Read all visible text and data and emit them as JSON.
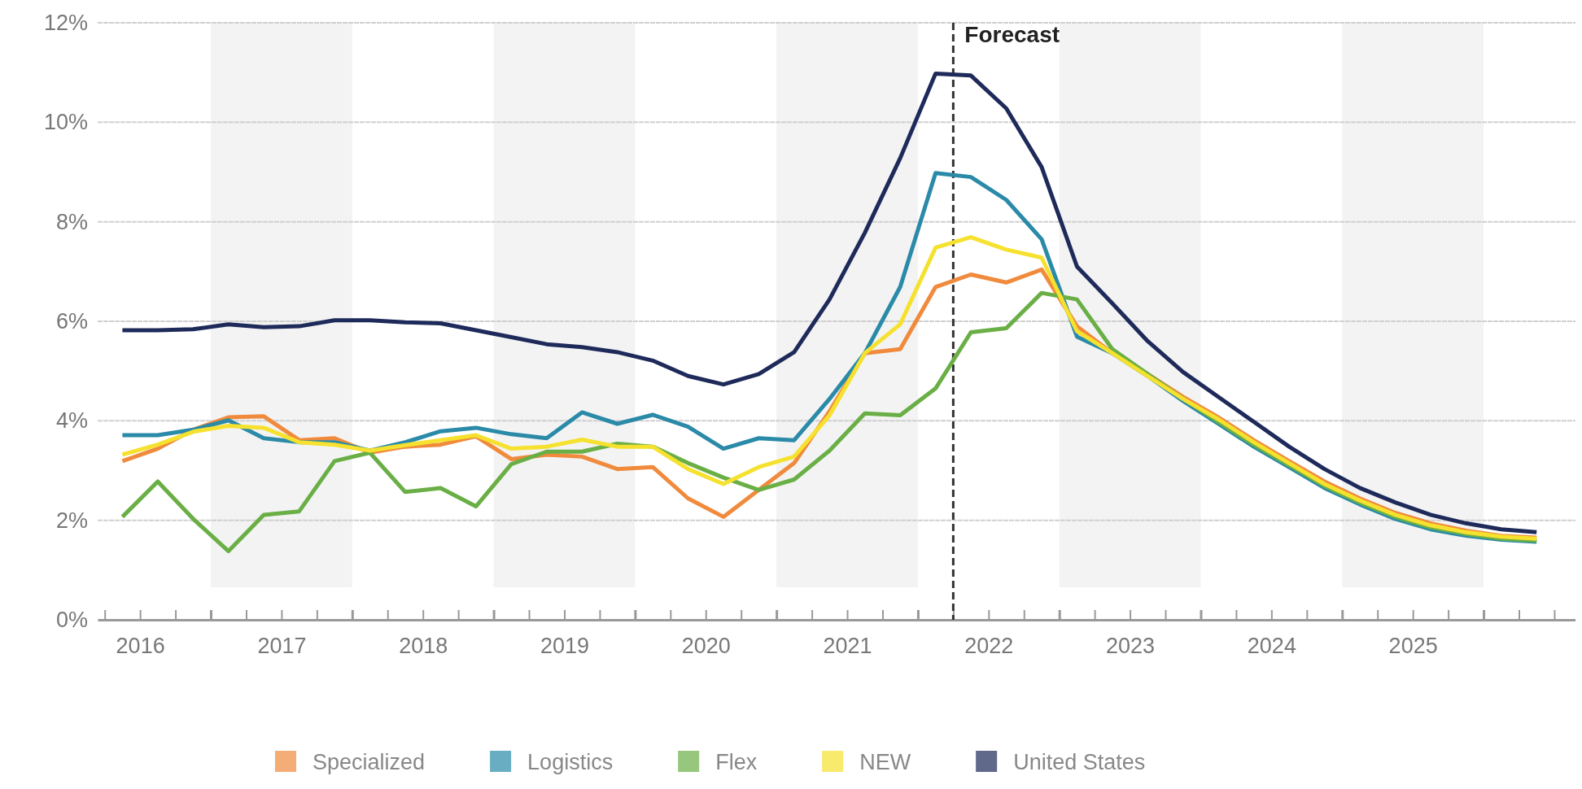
{
  "chart_data": {
    "type": "line",
    "x": [
      2016.375,
      2016.625,
      2016.875,
      2017.125,
      2017.375,
      2017.625,
      2017.875,
      2018.125,
      2018.375,
      2018.625,
      2018.875,
      2019.125,
      2019.375,
      2019.625,
      2019.875,
      2020.125,
      2020.375,
      2020.625,
      2020.875,
      2021.125,
      2021.375,
      2021.625,
      2021.875,
      2022.125,
      2022.375,
      2022.625,
      2022.875,
      2023.125,
      2023.375,
      2023.625,
      2023.875,
      2024.125,
      2024.375,
      2024.625,
      2024.875,
      2025.125,
      2025.375,
      2025.625,
      2025.875,
      2026.125,
      2026.375
    ],
    "series": [
      {
        "name": "Specialized",
        "color": "#f08a3c",
        "values": [
          3.19,
          3.44,
          3.82,
          4.07,
          4.09,
          3.61,
          3.65,
          3.36,
          3.48,
          3.52,
          3.69,
          3.23,
          3.32,
          3.28,
          3.03,
          3.07,
          2.44,
          2.07,
          2.61,
          3.15,
          4.19,
          5.36,
          5.44,
          6.69,
          6.94,
          6.78,
          7.04,
          5.9,
          5.36,
          4.94,
          4.48,
          4.07,
          3.61,
          3.19,
          2.78,
          2.44,
          2.15,
          1.94,
          1.79,
          1.69,
          1.65
        ]
      },
      {
        "name": "Logistics",
        "color": "#2a8aa8",
        "values": [
          3.71,
          3.71,
          3.82,
          4.01,
          3.65,
          3.57,
          3.57,
          3.4,
          3.57,
          3.79,
          3.86,
          3.73,
          3.65,
          4.17,
          3.94,
          4.12,
          3.88,
          3.44,
          3.65,
          3.61,
          4.44,
          5.36,
          6.69,
          8.98,
          8.9,
          8.44,
          7.65,
          5.69,
          5.36,
          4.9,
          4.4,
          3.94,
          3.48,
          3.07,
          2.65,
          2.32,
          2.03,
          1.82,
          1.69,
          1.61,
          1.57
        ]
      },
      {
        "name": "Flex",
        "color": "#6aaf46",
        "values": [
          2.07,
          2.78,
          2.03,
          1.38,
          2.11,
          2.18,
          3.19,
          3.36,
          2.57,
          2.65,
          2.28,
          3.13,
          3.38,
          3.38,
          3.54,
          3.48,
          3.15,
          2.86,
          2.61,
          2.82,
          3.4,
          4.15,
          4.11,
          4.65,
          5.78,
          5.86,
          6.57,
          6.44,
          5.44,
          4.94,
          4.44,
          3.98,
          3.52,
          3.11,
          2.69,
          2.36,
          2.07,
          1.86,
          1.73,
          1.63,
          1.59
        ]
      },
      {
        "name": "NEW",
        "color": "#f5e12e",
        "values": [
          3.32,
          3.52,
          3.78,
          3.9,
          3.86,
          3.57,
          3.52,
          3.4,
          3.51,
          3.61,
          3.71,
          3.44,
          3.48,
          3.62,
          3.48,
          3.48,
          3.03,
          2.73,
          3.07,
          3.28,
          4.11,
          5.36,
          5.94,
          7.48,
          7.69,
          7.44,
          7.28,
          5.8,
          5.36,
          4.9,
          4.44,
          4.03,
          3.57,
          3.15,
          2.73,
          2.4,
          2.11,
          1.9,
          1.76,
          1.67,
          1.63
        ]
      },
      {
        "name": "United States",
        "color": "#1e2a5a",
        "values": [
          5.82,
          5.82,
          5.84,
          5.94,
          5.88,
          5.9,
          6.02,
          6.02,
          5.98,
          5.96,
          5.82,
          5.68,
          5.54,
          5.48,
          5.38,
          5.21,
          4.9,
          4.73,
          4.94,
          5.38,
          6.44,
          7.78,
          9.28,
          10.98,
          10.94,
          10.28,
          9.1,
          7.1,
          6.36,
          5.6,
          4.98,
          4.48,
          3.98,
          3.48,
          3.03,
          2.65,
          2.36,
          2.11,
          1.94,
          1.82,
          1.76
        ]
      }
    ],
    "xlim": [
      2016.2,
      2026.65
    ],
    "xticks": [
      {
        "value": 2016.25,
        "label": null
      },
      {
        "value": 2016.5,
        "label": "2016"
      },
      {
        "value": 2016.75,
        "label": null
      },
      {
        "value": 2017,
        "label": null
      },
      {
        "value": 2017.25,
        "label": null
      },
      {
        "value": 2017.5,
        "label": "2017"
      },
      {
        "value": 2017.75,
        "label": null
      },
      {
        "value": 2018,
        "label": null
      },
      {
        "value": 2018.25,
        "label": null
      },
      {
        "value": 2018.5,
        "label": "2018"
      },
      {
        "value": 2018.75,
        "label": null
      },
      {
        "value": 2019,
        "label": null
      },
      {
        "value": 2019.25,
        "label": null
      },
      {
        "value": 2019.5,
        "label": "2019"
      },
      {
        "value": 2019.75,
        "label": null
      },
      {
        "value": 2020,
        "label": null
      },
      {
        "value": 2020.25,
        "label": null
      },
      {
        "value": 2020.5,
        "label": "2020"
      },
      {
        "value": 2020.75,
        "label": null
      },
      {
        "value": 2021,
        "label": null
      },
      {
        "value": 2021.25,
        "label": null
      },
      {
        "value": 2021.5,
        "label": "2021"
      },
      {
        "value": 2021.75,
        "label": null
      },
      {
        "value": 2022,
        "label": null
      },
      {
        "value": 2022.25,
        "label": null
      },
      {
        "value": 2022.5,
        "label": "2022"
      },
      {
        "value": 2022.75,
        "label": null
      },
      {
        "value": 2023,
        "label": null
      },
      {
        "value": 2023.25,
        "label": null
      },
      {
        "value": 2023.5,
        "label": "2023"
      },
      {
        "value": 2023.75,
        "label": null
      },
      {
        "value": 2024,
        "label": null
      },
      {
        "value": 2024.25,
        "label": null
      },
      {
        "value": 2024.5,
        "label": "2024"
      },
      {
        "value": 2024.75,
        "label": null
      },
      {
        "value": 2025,
        "label": null
      },
      {
        "value": 2025.25,
        "label": null
      },
      {
        "value": 2025.5,
        "label": "2025"
      },
      {
        "value": 2025.75,
        "label": null
      },
      {
        "value": 2026,
        "label": null
      },
      {
        "value": 2026.25,
        "label": null
      },
      {
        "value": 2026.5,
        "label": null
      }
    ],
    "ylim": [
      0,
      12
    ],
    "yticks": [
      {
        "value": 0,
        "label": "0%"
      },
      {
        "value": 2,
        "label": "2%"
      },
      {
        "value": 4,
        "label": "4%"
      },
      {
        "value": 6,
        "label": "6%"
      },
      {
        "value": 8,
        "label": "8%"
      },
      {
        "value": 10,
        "label": "10%"
      },
      {
        "value": 12,
        "label": "12%"
      }
    ],
    "grid": "y",
    "legend": "bottom",
    "marker": "none",
    "line_style": "solid",
    "ref_lines": [
      {
        "axis": "x",
        "value": 2022.25,
        "label": "Forecast",
        "line_style": "dashed",
        "color": "#333333"
      }
    ],
    "bands": [
      {
        "axis": "x",
        "from": 2017,
        "to": 2018,
        "color": "#f3f3f3"
      },
      {
        "axis": "x",
        "from": 2019,
        "to": 2020,
        "color": "#f3f3f3"
      },
      {
        "axis": "x",
        "from": 2021,
        "to": 2022,
        "color": "#f3f3f3"
      },
      {
        "axis": "x",
        "from": 2023,
        "to": 2024,
        "color": "#f3f3f3"
      },
      {
        "axis": "x",
        "from": 2025,
        "to": 2026,
        "color": "#f3f3f3"
      }
    ]
  }
}
